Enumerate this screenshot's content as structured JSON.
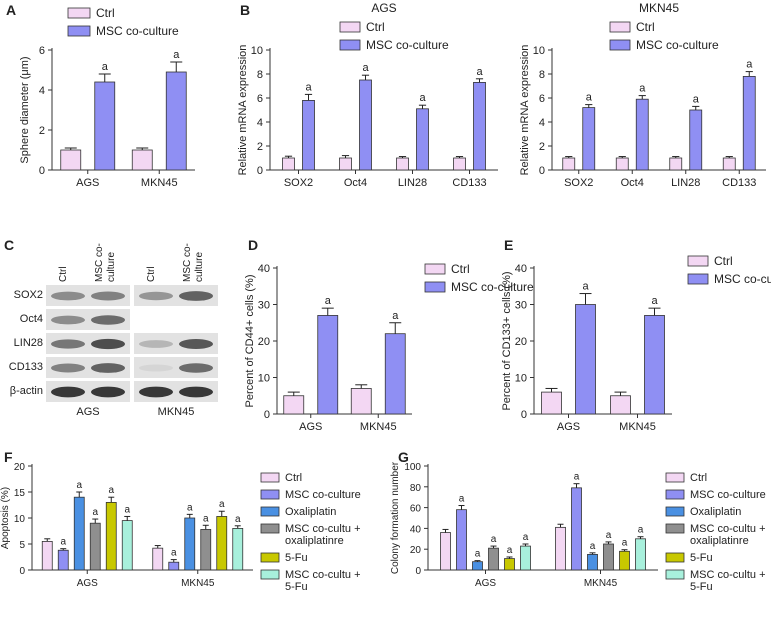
{
  "panel_letters": [
    "A",
    "B",
    "C",
    "D",
    "E",
    "F",
    "G"
  ],
  "colors": {
    "ctrl": "#f3d7f3",
    "msc": "#8f8ff3",
    "oxa": "#4a90e2",
    "msc_oxa": "#8f8f8f",
    "fu": "#c8c800",
    "msc_fu": "#a8f0dc"
  },
  "blot": {
    "lanes": [
      "Ctrl",
      "MSC co-culture"
    ],
    "rows": [
      "SOX2",
      "Oct4",
      "LIN28",
      "CD133",
      "β-actin"
    ],
    "groups": [
      "AGS",
      "MKN45"
    ]
  },
  "chart_data": [
    {
      "id": "A",
      "type": "bar",
      "ylabel": "Sphere diameter (μm)",
      "ylim": [
        0,
        6
      ],
      "yticks": [
        0,
        2,
        4,
        6
      ],
      "categories": [
        "AGS",
        "MKN45"
      ],
      "series": [
        {
          "name": "Ctrl",
          "color_key": "ctrl",
          "values": [
            1.0,
            1.0
          ],
          "errors": [
            0.1,
            0.1
          ],
          "marks": [
            "",
            ""
          ]
        },
        {
          "name": "MSC co-culture",
          "color_key": "msc",
          "values": [
            4.4,
            4.9
          ],
          "errors": [
            0.4,
            0.5
          ],
          "marks": [
            "a",
            "a"
          ]
        }
      ],
      "legend": [
        "Ctrl",
        "MSC co-culture"
      ]
    },
    {
      "id": "B1",
      "type": "bar",
      "title": "AGS",
      "ylabel": "Relative mRNA expression",
      "ylim": [
        0,
        10
      ],
      "yticks": [
        0,
        2,
        4,
        6,
        8,
        10
      ],
      "categories": [
        "SOX2",
        "Oct4",
        "LIN28",
        "CD133"
      ],
      "series": [
        {
          "name": "Ctrl",
          "color_key": "ctrl",
          "values": [
            1.0,
            1.0,
            1.0,
            1.0
          ],
          "errors": [
            0.15,
            0.2,
            0.12,
            0.12
          ],
          "marks": [
            "",
            "",
            "",
            ""
          ]
        },
        {
          "name": "MSC co-culture",
          "color_key": "msc",
          "values": [
            5.8,
            7.5,
            5.1,
            7.3
          ],
          "errors": [
            0.5,
            0.4,
            0.3,
            0.3
          ],
          "marks": [
            "a",
            "a",
            "a",
            "a"
          ]
        }
      ],
      "legend": [
        "Ctrl",
        "MSC co-culture"
      ]
    },
    {
      "id": "B2",
      "type": "bar",
      "title": "MKN45",
      "ylabel": "Relative mRNA expression",
      "ylim": [
        0,
        10
      ],
      "yticks": [
        0,
        2,
        4,
        6,
        8,
        10
      ],
      "categories": [
        "SOX2",
        "Oct4",
        "LIN28",
        "CD133"
      ],
      "series": [
        {
          "name": "Ctrl",
          "color_key": "ctrl",
          "values": [
            1.0,
            1.0,
            1.0,
            1.0
          ],
          "errors": [
            0.12,
            0.12,
            0.12,
            0.12
          ],
          "marks": [
            "",
            "",
            "",
            ""
          ]
        },
        {
          "name": "MSC co-culture",
          "color_key": "msc",
          "values": [
            5.2,
            5.9,
            5.0,
            7.8
          ],
          "errors": [
            0.25,
            0.3,
            0.3,
            0.4
          ],
          "marks": [
            "a",
            "a",
            "a",
            "a"
          ]
        }
      ],
      "legend": [
        "Ctrl",
        "MSC co-culture"
      ]
    },
    {
      "id": "D",
      "type": "bar",
      "ylabel": "Percent of CD44+ cells (%)",
      "ylim": [
        0,
        40
      ],
      "yticks": [
        0,
        10,
        20,
        30,
        40
      ],
      "categories": [
        "AGS",
        "MKN45"
      ],
      "series": [
        {
          "name": "Ctrl",
          "color_key": "ctrl",
          "values": [
            5.0,
            7.0
          ],
          "errors": [
            1.0,
            1.0
          ],
          "marks": [
            "",
            ""
          ]
        },
        {
          "name": "MSC co-culture",
          "color_key": "msc",
          "values": [
            27.0,
            22.0
          ],
          "errors": [
            2.0,
            3.0
          ],
          "marks": [
            "a",
            "a"
          ]
        }
      ],
      "legend": [
        "Ctrl",
        "MSC co-culture"
      ]
    },
    {
      "id": "E",
      "type": "bar",
      "ylabel": "Percent of CD133+ cells (%)",
      "ylim": [
        0,
        40
      ],
      "yticks": [
        0,
        10,
        20,
        30,
        40
      ],
      "categories": [
        "AGS",
        "MKN45"
      ],
      "series": [
        {
          "name": "Ctrl",
          "color_key": "ctrl",
          "values": [
            6.0,
            5.0
          ],
          "errors": [
            1.0,
            1.0
          ],
          "marks": [
            "",
            ""
          ]
        },
        {
          "name": "MSC co-culture",
          "color_key": "msc",
          "values": [
            30.0,
            27.0
          ],
          "errors": [
            3.0,
            2.0
          ],
          "marks": [
            "a",
            "a"
          ]
        }
      ],
      "legend": [
        "Ctrl",
        "MSC co-culture"
      ]
    },
    {
      "id": "F",
      "type": "bar",
      "ylabel": "Apoptosis (%)",
      "ylim": [
        0,
        20
      ],
      "yticks": [
        0,
        5,
        10,
        15,
        20
      ],
      "categories": [
        "AGS",
        "MKN45"
      ],
      "series": [
        {
          "name": "Ctrl",
          "color_key": "ctrl",
          "values": [
            5.5,
            4.2
          ],
          "errors": [
            0.5,
            0.5
          ],
          "marks": [
            "",
            ""
          ]
        },
        {
          "name": "MSC co-culture",
          "color_key": "msc",
          "values": [
            3.8,
            1.5
          ],
          "errors": [
            0.3,
            0.5
          ],
          "marks": [
            "a",
            "a"
          ]
        },
        {
          "name": "Oxaliplatin",
          "color_key": "oxa",
          "values": [
            14.0,
            10.0
          ],
          "errors": [
            1.0,
            0.7
          ],
          "marks": [
            "a",
            "a"
          ]
        },
        {
          "name": "MSC co-cultu + oxaliplatinre",
          "color_key": "msc_oxa",
          "values": [
            9.0,
            7.8
          ],
          "errors": [
            0.8,
            0.8
          ],
          "marks": [
            "a",
            "a"
          ]
        },
        {
          "name": "5-Fu",
          "color_key": "fu",
          "values": [
            13.0,
            10.3
          ],
          "errors": [
            1.0,
            1.0
          ],
          "marks": [
            "a",
            "a"
          ]
        },
        {
          "name": "MSC co-cultu + 5-Fu",
          "color_key": "msc_fu",
          "values": [
            9.5,
            8.0
          ],
          "errors": [
            0.8,
            0.5
          ],
          "marks": [
            "a",
            "a"
          ]
        }
      ],
      "legend": [
        "Ctrl",
        "MSC co-culture",
        "Oxaliplatin",
        "MSC co-cultu +|oxaliplatinre",
        "5-Fu",
        "MSC co-cultu +|5-Fu"
      ]
    },
    {
      "id": "G",
      "type": "bar",
      "ylabel": "Colony formation number",
      "ylim": [
        0,
        100
      ],
      "yticks": [
        0,
        20,
        40,
        60,
        80,
        100
      ],
      "categories": [
        "AGS",
        "MKN45"
      ],
      "series": [
        {
          "name": "Ctrl",
          "color_key": "ctrl",
          "values": [
            36,
            41
          ],
          "errors": [
            3,
            3
          ],
          "marks": [
            "",
            ""
          ]
        },
        {
          "name": "MSC co-culture",
          "color_key": "msc",
          "values": [
            58,
            79
          ],
          "errors": [
            4,
            4
          ],
          "marks": [
            "a",
            "a"
          ]
        },
        {
          "name": "Oxaliplatin",
          "color_key": "oxa",
          "values": [
            8,
            15
          ],
          "errors": [
            1,
            1.5
          ],
          "marks": [
            "a",
            "a"
          ]
        },
        {
          "name": "MSC co-cultu + oxaliplatinre",
          "color_key": "msc_oxa",
          "values": [
            21,
            25
          ],
          "errors": [
            2,
            2
          ],
          "marks": [
            "a",
            "a"
          ]
        },
        {
          "name": "5-Fu",
          "color_key": "fu",
          "values": [
            11,
            18
          ],
          "errors": [
            1.5,
            1.5
          ],
          "marks": [
            "a",
            "a"
          ]
        },
        {
          "name": "MSC co-cultu + 5-Fu",
          "color_key": "msc_fu",
          "values": [
            23,
            30
          ],
          "errors": [
            2,
            2
          ],
          "marks": [
            "a",
            "a"
          ]
        }
      ],
      "legend": [
        "Ctrl",
        "MSC co-culture",
        "Oxaliplatin",
        "MSC co-cultu +|oxaliplatinre",
        "5-Fu",
        "MSC co-cultu +|5-Fu"
      ]
    }
  ]
}
